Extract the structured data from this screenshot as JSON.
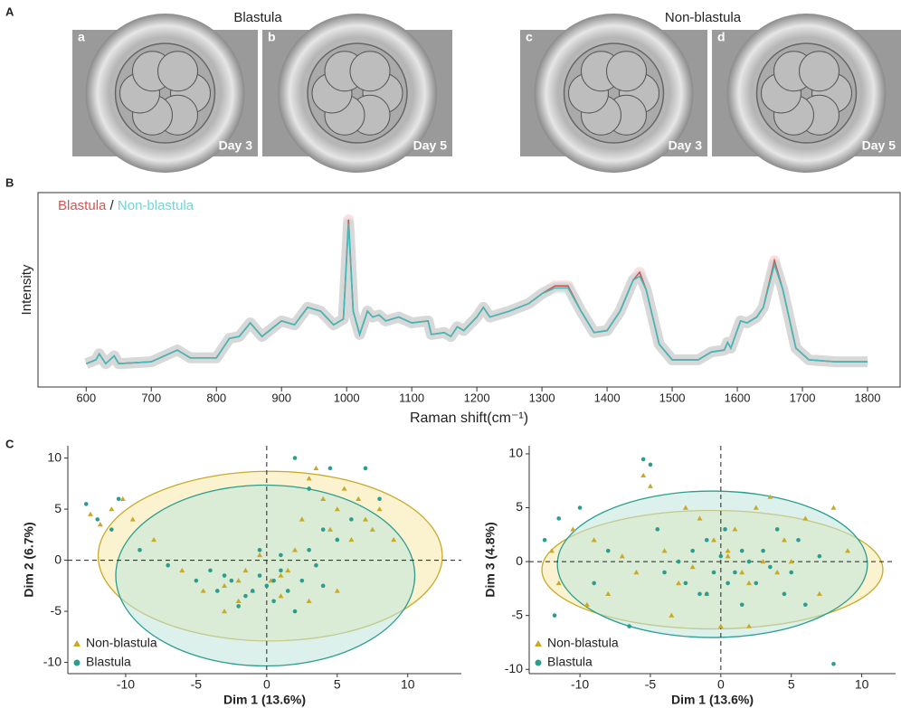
{
  "figure": {
    "panel_letters": [
      "A",
      "B",
      "C"
    ],
    "group_titles": [
      "Blastula",
      "Non-blastula"
    ],
    "images": [
      {
        "letter": "a",
        "day": "Day 3"
      },
      {
        "letter": "b",
        "day": "Day 5"
      },
      {
        "letter": "c",
        "day": "Day 3"
      },
      {
        "letter": "d",
        "day": "Day 5"
      }
    ]
  },
  "chart_data": [
    {
      "type": "line",
      "xlabel": "Raman shift(cm⁻¹)",
      "ylabel": "Intensity",
      "legend_separator": "/",
      "x": [
        600,
        615,
        620,
        630,
        643,
        650,
        700,
        740,
        760,
        800,
        820,
        835,
        852,
        870,
        900,
        920,
        940,
        960,
        980,
        995,
        1003,
        1010,
        1020,
        1032,
        1040,
        1050,
        1060,
        1080,
        1100,
        1125,
        1130,
        1150,
        1160,
        1170,
        1180,
        1200,
        1210,
        1220,
        1250,
        1280,
        1300,
        1320,
        1340,
        1360,
        1380,
        1400,
        1420,
        1440,
        1450,
        1460,
        1480,
        1500,
        1540,
        1560,
        1580,
        1585,
        1590,
        1605,
        1615,
        1630,
        1640,
        1657,
        1670,
        1690,
        1710,
        1750,
        1800
      ],
      "series": [
        {
          "name": "Blastula",
          "color": "#d9534f",
          "values": [
            12,
            14,
            17,
            12,
            16,
            12,
            13,
            19,
            15,
            15,
            25,
            26,
            33,
            26,
            34,
            32,
            41,
            39,
            32,
            35,
            86,
            39,
            27,
            39,
            36,
            37,
            34,
            36,
            33,
            34,
            27,
            28,
            26,
            31,
            29,
            36,
            41,
            36,
            39,
            43,
            48,
            52,
            52,
            39,
            28,
            29,
            39,
            55,
            59,
            50,
            22,
            14,
            14,
            18,
            19,
            23,
            20,
            34,
            33,
            36,
            41,
            65,
            50,
            20,
            14,
            13,
            13
          ]
        },
        {
          "name": "Non-blastula",
          "color": "#3fbaba",
          "values": [
            12,
            14,
            17,
            12,
            16,
            12,
            13,
            19,
            15,
            15,
            25,
            26,
            33,
            26,
            34,
            32,
            41,
            39,
            32,
            35,
            84,
            39,
            27,
            39,
            36,
            37,
            34,
            36,
            33,
            34,
            27,
            28,
            26,
            31,
            29,
            36,
            41,
            36,
            39,
            43,
            48,
            51,
            51,
            39,
            28,
            29,
            39,
            55,
            57,
            50,
            22,
            14,
            14,
            18,
            19,
            23,
            20,
            34,
            33,
            36,
            41,
            63,
            50,
            20,
            14,
            13,
            13
          ]
        }
      ],
      "xlim": [
        526,
        1850
      ],
      "ylim": [
        0,
        100
      ],
      "xticks": [
        600,
        700,
        800,
        900,
        1000,
        1100,
        1200,
        1300,
        1400,
        1500,
        1600,
        1700,
        1800
      ]
    },
    {
      "type": "scatter",
      "xlabel": "Dim 1 (13.6%)",
      "ylabel": "Dim 2 (6.7%)",
      "xlim": [
        -14.1,
        13.8
      ],
      "ylim": [
        -11.1,
        11.2
      ],
      "xticks": [
        -10,
        -5,
        0,
        5,
        10
      ],
      "yticks": [
        -10,
        -5,
        0,
        5,
        10
      ],
      "hlines": [
        0
      ],
      "vlines": [
        0
      ],
      "series": [
        {
          "name": "Non-blastula",
          "color": "#c9a928",
          "fill": "#f7e9a8",
          "marker": "triangle",
          "ellipse": {
            "cx": 0.25,
            "cy": 0.4,
            "rx": 12.2,
            "ry": 8.3
          },
          "x": [
            -12.5,
            -11.8,
            -11,
            -10.2,
            -9.5,
            -8,
            -6,
            -4.5,
            -3,
            -2,
            -1.5,
            -1,
            -0.5,
            0.3,
            1,
            1.5,
            2,
            2.5,
            3,
            3.5,
            4,
            4.5,
            5,
            5.5,
            6,
            6.5,
            7,
            7.5,
            8,
            9,
            3,
            -3,
            1,
            -2,
            5
          ],
          "values": [
            4.5,
            3.5,
            5,
            6,
            4,
            2,
            -1,
            -3,
            -2.5,
            -4,
            -1,
            -3,
            0.5,
            -2,
            -3.5,
            -1,
            1,
            4,
            8,
            9,
            6,
            3,
            5,
            7,
            2,
            6,
            4,
            3,
            5,
            2,
            -4,
            -5,
            -1.5,
            -2,
            -3
          ]
        },
        {
          "name": "Blastula",
          "color": "#2a9d8f",
          "fill": "#bfe3dc",
          "marker": "circle",
          "ellipse": {
            "cx": -0.1,
            "cy": -1.5,
            "rx": 10.6,
            "ry": 8.85
          },
          "x": [
            -12.8,
            -12,
            -11,
            -10.5,
            -9,
            -7,
            -5,
            -4,
            -3.5,
            -2.5,
            -2,
            -1,
            -0.5,
            0,
            0.5,
            1,
            1.5,
            2,
            2.5,
            3,
            3.5,
            4,
            4.5,
            5,
            6,
            7,
            8,
            2,
            -1.5,
            0.5,
            1,
            -3,
            4,
            3,
            -0.5
          ],
          "values": [
            5.5,
            4,
            3,
            6,
            1,
            -0.5,
            -2,
            -1,
            -3,
            -2,
            -4.5,
            -3,
            -1.5,
            -2.5,
            -4,
            -1,
            -3,
            10,
            -2,
            1,
            -0.5,
            3,
            9,
            2,
            4,
            9,
            6,
            -5,
            -3.5,
            -2,
            0.5,
            -1.5,
            -2.5,
            7,
            1
          ]
        }
      ]
    },
    {
      "type": "scatter",
      "xlabel": "Dim 1 (13.6%)",
      "ylabel": "Dim 3 (4.8%)",
      "xlim": [
        -13.6,
        12.4
      ],
      "ylim": [
        -10.4,
        10.75
      ],
      "xticks": [
        -10,
        -5,
        0,
        5,
        10
      ],
      "yticks": [
        -10,
        -5,
        0,
        5,
        10
      ],
      "hlines": [
        0
      ],
      "vlines": [
        0
      ],
      "series": [
        {
          "name": "Non-blastula",
          "color": "#c9a928",
          "fill": "#f7e9a8",
          "marker": "triangle",
          "ellipse": {
            "cx": -0.6,
            "cy": -0.75,
            "rx": 12.1,
            "ry": 5.5
          },
          "x": [
            -12,
            -11.5,
            -10.5,
            -9.5,
            -9,
            -8,
            -7,
            -6,
            -5.5,
            -5,
            -4,
            -3,
            -2.5,
            -2,
            -1.5,
            -1,
            -0.5,
            0,
            0.5,
            1,
            1.5,
            2,
            2.5,
            3,
            3.5,
            4,
            4.5,
            5,
            6,
            7,
            8,
            9,
            -3.5,
            2,
            0.5
          ],
          "values": [
            1,
            -2,
            3,
            -4,
            2,
            -3,
            0.5,
            -1,
            8,
            7,
            1,
            -2,
            5,
            -0.5,
            4,
            -3,
            2,
            -6,
            1,
            3,
            -1,
            -2,
            5,
            0,
            6,
            -1,
            2,
            0,
            4,
            -3,
            5,
            1,
            -5,
            -6,
            0.5
          ]
        },
        {
          "name": "Blastula",
          "color": "#2a9d8f",
          "fill": "#bfe3dc",
          "marker": "circle",
          "ellipse": {
            "cx": -0.6,
            "cy": -0.25,
            "rx": 11,
            "ry": 6.8
          },
          "x": [
            -12.5,
            -11.8,
            -11.5,
            -10,
            -9,
            -8,
            -6.5,
            -5.5,
            -5,
            -4.5,
            -4,
            -3,
            -2.5,
            -2,
            -1.5,
            -1,
            -0.5,
            0,
            0.3,
            1,
            1.5,
            2,
            2.5,
            3,
            3.5,
            4,
            4.5,
            5,
            5.5,
            6,
            7,
            8,
            -1,
            1.5,
            0.5
          ],
          "values": [
            2,
            -5,
            4,
            5,
            -2,
            1,
            -6,
            9.5,
            9,
            3,
            -1,
            0,
            -2,
            1,
            -3,
            2,
            -1,
            0.5,
            3,
            -1,
            -4,
            0,
            -2,
            1,
            -0.5,
            3,
            -3,
            -1,
            2,
            -4,
            0.5,
            -9.5,
            -3,
            1,
            -2
          ]
        }
      ]
    }
  ]
}
